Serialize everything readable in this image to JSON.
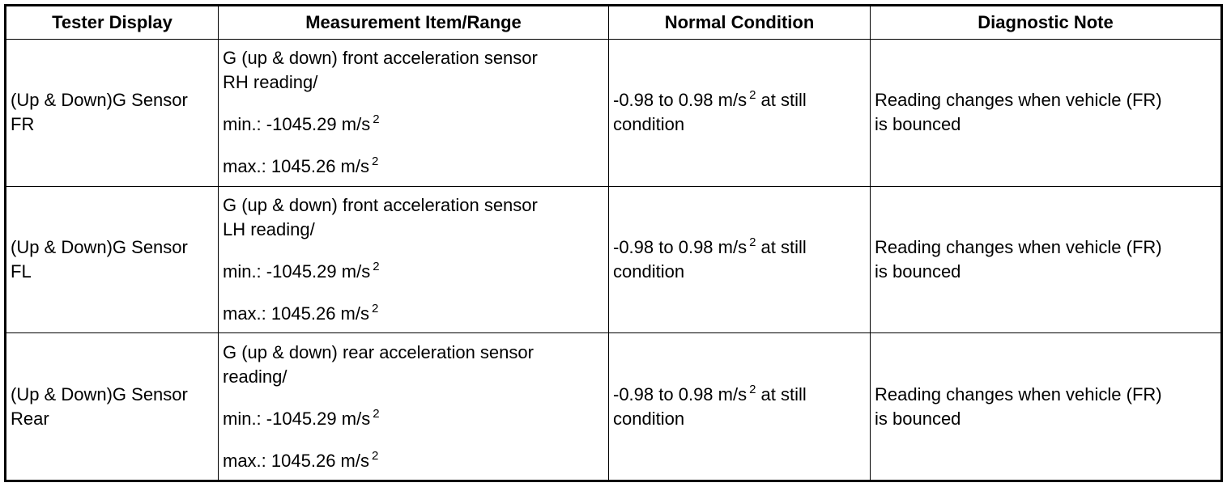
{
  "columns": {
    "tester_display": "Tester Display",
    "measurement": "Measurement Item/Range",
    "normal": "Normal Condition",
    "diagnostic": "Diagnostic Note"
  },
  "rows": [
    {
      "tester_line1": "(Up & Down)G Sensor",
      "tester_line2": "FR",
      "meas_line1": "G (up & down) front acceleration sensor",
      "meas_line2": "RH reading/",
      "min_text": "min.: -1045.29 m/s",
      "max_text": "max.: 1045.26 m/s",
      "exponent": "2",
      "normal_line1": "-0.98 to 0.98 m/s",
      "normal_line1_tail": " at still",
      "normal_line2": "condition",
      "diag_line1": "Reading changes when vehicle (FR)",
      "diag_line2": "is bounced"
    },
    {
      "tester_line1": "(Up & Down)G Sensor",
      "tester_line2": "FL",
      "meas_line1": "G (up & down) front acceleration sensor",
      "meas_line2": "LH reading/",
      "min_text": "min.: -1045.29 m/s",
      "max_text": "max.: 1045.26 m/s",
      "exponent": "2",
      "normal_line1": "-0.98 to 0.98 m/s",
      "normal_line1_tail": " at still",
      "normal_line2": "condition",
      "diag_line1": "Reading changes when vehicle (FR)",
      "diag_line2": "is bounced"
    },
    {
      "tester_line1": "(Up & Down)G Sensor",
      "tester_line2": "Rear",
      "meas_line1": "G (up & down) rear acceleration sensor",
      "meas_line2": "reading/",
      "min_text": "min.: -1045.29 m/s",
      "max_text": "max.: 1045.26 m/s",
      "exponent": "2",
      "normal_line1": "-0.98 to 0.98 m/s",
      "normal_line1_tail": " at still",
      "normal_line2": "condition",
      "diag_line1": "Reading changes when vehicle (FR)",
      "diag_line2": "is bounced"
    }
  ]
}
